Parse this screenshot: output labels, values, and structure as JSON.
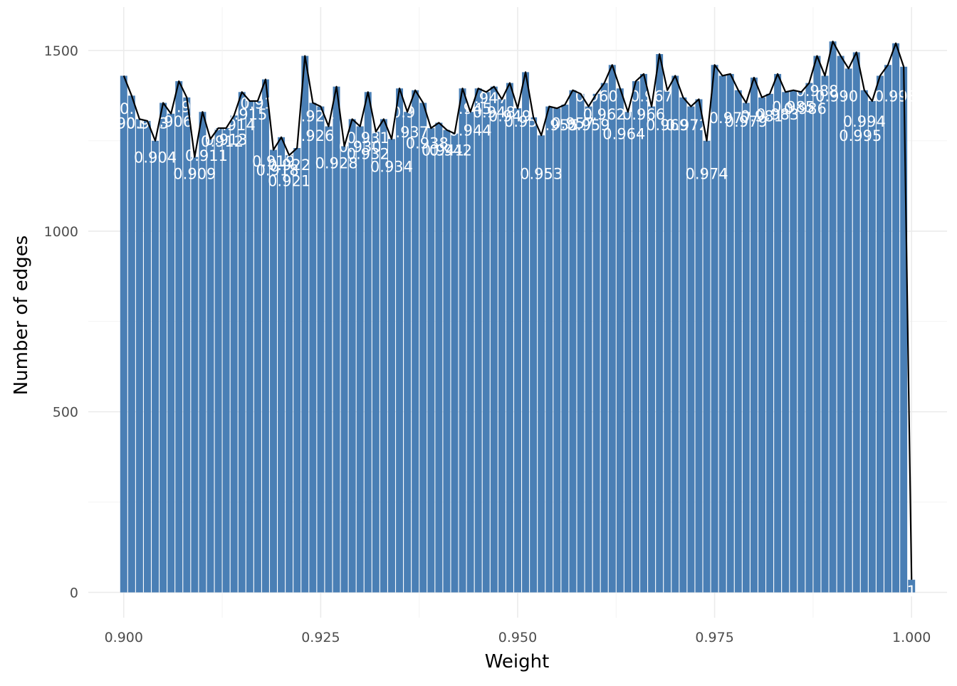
{
  "chart_data": {
    "type": "bar",
    "title": "",
    "xlabel": "Weight",
    "ylabel": "Number of edges",
    "xlim": [
      0.8955,
      1.0045
    ],
    "ylim": [
      -70,
      1620
    ],
    "x_ticks": [
      0.9,
      0.925,
      0.95,
      0.975,
      1.0
    ],
    "x_tick_labels": [
      "0.900",
      "0.925",
      "0.950",
      "0.975",
      "1.000"
    ],
    "y_ticks": [
      0,
      500,
      1000,
      1500
    ],
    "y_tick_labels": [
      "0",
      "500",
      "1000",
      "1500"
    ],
    "grid": true,
    "legend": "none",
    "bar_width": 0.0009,
    "bar_color": "#4A7FB5",
    "line_color": "#000000",
    "label_color": "#ffffff",
    "x": [
      0.9,
      0.901,
      0.902,
      0.903,
      0.904,
      0.905,
      0.906,
      0.907,
      0.908,
      0.909,
      0.91,
      0.911,
      0.912,
      0.913,
      0.914,
      0.915,
      0.916,
      0.917,
      0.918,
      0.919,
      0.92,
      0.921,
      0.922,
      0.923,
      0.924,
      0.925,
      0.926,
      0.927,
      0.928,
      0.929,
      0.93,
      0.931,
      0.932,
      0.933,
      0.934,
      0.935,
      0.936,
      0.937,
      0.938,
      0.939,
      0.94,
      0.941,
      0.942,
      0.943,
      0.944,
      0.945,
      0.946,
      0.947,
      0.948,
      0.949,
      0.95,
      0.951,
      0.952,
      0.953,
      0.954,
      0.955,
      0.956,
      0.957,
      0.958,
      0.959,
      0.96,
      0.961,
      0.962,
      0.963,
      0.964,
      0.965,
      0.966,
      0.967,
      0.968,
      0.969,
      0.97,
      0.971,
      0.972,
      0.973,
      0.974,
      0.975,
      0.976,
      0.977,
      0.978,
      0.979,
      0.98,
      0.981,
      0.982,
      0.983,
      0.984,
      0.985,
      0.986,
      0.987,
      0.988,
      0.989,
      0.99,
      0.991,
      0.992,
      0.993,
      0.994,
      0.995,
      0.996,
      0.997,
      0.998,
      0.999,
      1.0
    ],
    "values": [
      1430,
      1375,
      1310,
      1305,
      1250,
      1355,
      1325,
      1415,
      1370,
      1205,
      1330,
      1255,
      1285,
      1285,
      1320,
      1385,
      1360,
      1360,
      1420,
      1225,
      1260,
      1210,
      1230,
      1485,
      1355,
      1345,
      1290,
      1400,
      1235,
      1310,
      1290,
      1385,
      1275,
      1310,
      1255,
      1395,
      1330,
      1390,
      1355,
      1285,
      1300,
      1280,
      1270,
      1395,
      1330,
      1395,
      1385,
      1400,
      1365,
      1410,
      1340,
      1440,
      1315,
      1265,
      1345,
      1340,
      1350,
      1390,
      1380,
      1345,
      1380,
      1410,
      1460,
      1395,
      1330,
      1415,
      1435,
      1345,
      1490,
      1390,
      1430,
      1370,
      1345,
      1365,
      1250,
      1460,
      1430,
      1435,
      1390,
      1355,
      1425,
      1370,
      1380,
      1435,
      1385,
      1390,
      1385,
      1410,
      1485,
      1430,
      1525,
      1485,
      1450,
      1495,
      1390,
      1360,
      1430,
      1460,
      1520,
      1455,
      35
    ],
    "bar_labels": [
      {
        "x": 0.9,
        "y": 1300,
        "text": "0.901"
      },
      {
        "x": 0.901,
        "y": 1340,
        "text": "0.9"
      },
      {
        "x": 0.903,
        "y": 1300,
        "text": "0.903"
      },
      {
        "x": 0.904,
        "y": 1205,
        "text": "0.904"
      },
      {
        "x": 0.906,
        "y": 1305,
        "text": "0.906"
      },
      {
        "x": 0.907,
        "y": 1345,
        "text": "0.9"
      },
      {
        "x": 0.909,
        "y": 1160,
        "text": "0.909"
      },
      {
        "x": 0.9105,
        "y": 1210,
        "text": "0.911"
      },
      {
        "x": 0.9125,
        "y": 1250,
        "text": "0.912"
      },
      {
        "x": 0.913,
        "y": 1255,
        "text": "0.913"
      },
      {
        "x": 0.914,
        "y": 1295,
        "text": "0.914"
      },
      {
        "x": 0.9155,
        "y": 1325,
        "text": "0.915"
      },
      {
        "x": 0.9175,
        "y": 1355,
        "text": "0.916"
      },
      {
        "x": 0.919,
        "y": 1195,
        "text": "0.919"
      },
      {
        "x": 0.9195,
        "y": 1170,
        "text": "0.918"
      },
      {
        "x": 0.921,
        "y": 1140,
        "text": "0.921"
      },
      {
        "x": 0.921,
        "y": 1185,
        "text": "0.922"
      },
      {
        "x": 0.924,
        "y": 1320,
        "text": "0.924"
      },
      {
        "x": 0.924,
        "y": 1265,
        "text": "0.926"
      },
      {
        "x": 0.927,
        "y": 1190,
        "text": "0.928"
      },
      {
        "x": 0.93,
        "y": 1235,
        "text": "0.930"
      },
      {
        "x": 0.931,
        "y": 1260,
        "text": "0.931"
      },
      {
        "x": 0.931,
        "y": 1215,
        "text": "0.932"
      },
      {
        "x": 0.934,
        "y": 1180,
        "text": "0.934"
      },
      {
        "x": 0.9355,
        "y": 1330,
        "text": "0.9"
      },
      {
        "x": 0.936,
        "y": 1275,
        "text": "0.937"
      },
      {
        "x": 0.9385,
        "y": 1245,
        "text": "0.938"
      },
      {
        "x": 0.9405,
        "y": 1225,
        "text": "0.941"
      },
      {
        "x": 0.9415,
        "y": 1225,
        "text": "0.942"
      },
      {
        "x": 0.944,
        "y": 1340,
        "text": "0.945"
      },
      {
        "x": 0.944,
        "y": 1280,
        "text": "0.944"
      },
      {
        "x": 0.946,
        "y": 1370,
        "text": "0.947"
      },
      {
        "x": 0.947,
        "y": 1330,
        "text": "0.948"
      },
      {
        "x": 0.949,
        "y": 1320,
        "text": "0.949"
      },
      {
        "x": 0.951,
        "y": 1305,
        "text": "0.951"
      },
      {
        "x": 0.953,
        "y": 1160,
        "text": "0.953"
      },
      {
        "x": 0.955,
        "y": 1295,
        "text": "0.955"
      },
      {
        "x": 0.957,
        "y": 1300,
        "text": "0.957"
      },
      {
        "x": 0.959,
        "y": 1295,
        "text": "0.959"
      },
      {
        "x": 0.96,
        "y": 1375,
        "text": "0.960"
      },
      {
        "x": 0.961,
        "y": 1325,
        "text": "0.962"
      },
      {
        "x": 0.9635,
        "y": 1270,
        "text": "0.964"
      },
      {
        "x": 0.966,
        "y": 1325,
        "text": "0.966"
      },
      {
        "x": 0.967,
        "y": 1375,
        "text": "0.967"
      },
      {
        "x": 0.969,
        "y": 1295,
        "text": "0.969"
      },
      {
        "x": 0.9715,
        "y": 1295,
        "text": "0.972"
      },
      {
        "x": 0.974,
        "y": 1160,
        "text": "0.974"
      },
      {
        "x": 0.977,
        "y": 1315,
        "text": "0.977"
      },
      {
        "x": 0.979,
        "y": 1305,
        "text": "0.979"
      },
      {
        "x": 0.981,
        "y": 1320,
        "text": "0.981"
      },
      {
        "x": 0.983,
        "y": 1325,
        "text": "0.983"
      },
      {
        "x": 0.985,
        "y": 1345,
        "text": "0.985"
      },
      {
        "x": 0.9865,
        "y": 1340,
        "text": "0.986"
      },
      {
        "x": 0.988,
        "y": 1390,
        "text": "0.988"
      },
      {
        "x": 0.9905,
        "y": 1375,
        "text": "0.990"
      },
      {
        "x": 0.994,
        "y": 1305,
        "text": "0.994"
      },
      {
        "x": 0.9935,
        "y": 1265,
        "text": "0.995"
      },
      {
        "x": 0.998,
        "y": 1375,
        "text": "0.998"
      },
      {
        "x": 1.0,
        "y": 5,
        "text": "1"
      }
    ]
  }
}
